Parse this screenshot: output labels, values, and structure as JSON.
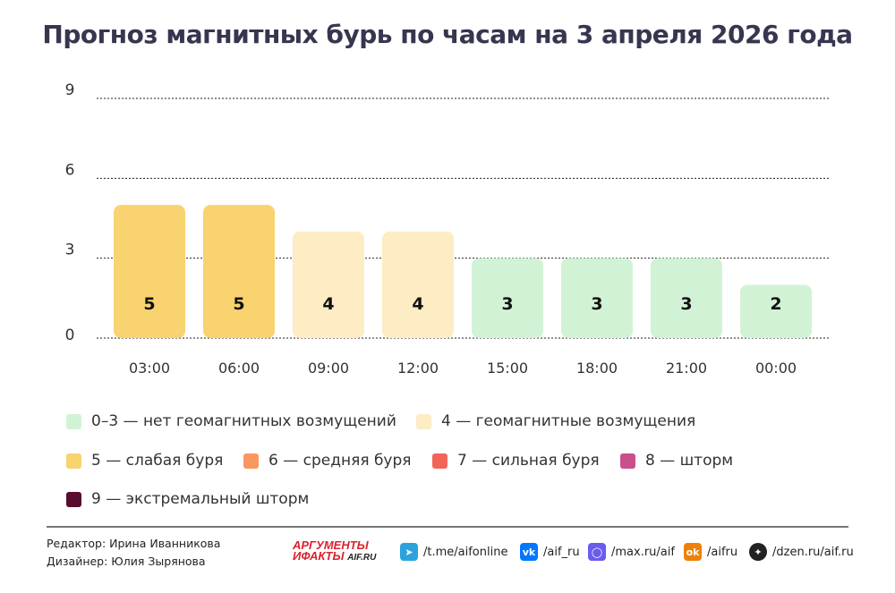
{
  "chart_data": {
    "type": "bar",
    "title": "Прогноз магнитных бурь по часам на 3 апреля 2026 года",
    "categories": [
      "03:00",
      "06:00",
      "09:00",
      "12:00",
      "15:00",
      "18:00",
      "21:00",
      "00:00"
    ],
    "values": [
      5,
      5,
      4,
      4,
      3,
      3,
      3,
      2
    ],
    "ylim": [
      0,
      9
    ],
    "yticks": [
      0,
      3,
      6,
      9
    ],
    "grid": true,
    "legend_placement": "bottom",
    "xlabel": "",
    "ylabel": ""
  },
  "legend": [
    {
      "label": "0–3 — нет геомагнитных возмущений",
      "color": "#d2f2d6"
    },
    {
      "label": "4 — геомагнитные возмущения",
      "color": "#fdecc4"
    },
    {
      "label": "5 — слабая буря",
      "color": "#f9d36f"
    },
    {
      "label": "6 — средняя буря",
      "color": "#f9975f"
    },
    {
      "label": "7 — сильная буря",
      "color": "#f2645a"
    },
    {
      "label": "8 — шторм",
      "color": "#c9508a"
    },
    {
      "label": "9 — экстремальный шторм",
      "color": "#5a0c2e"
    }
  ],
  "footer": {
    "editor": "Редактор: Ирина Иванникова",
    "designer": "Дизайнер: Юлия Зырянова",
    "logo": "АРГУМЕНТЫ И ФАКТЫ AIF.RU",
    "logo_line1": "АРГУМЕНТЫ",
    "logo_line2": "ИФАКТЫ",
    "logo_line3": "AIF.RU",
    "social": [
      {
        "icon": "telegram-icon",
        "label": "/t.me/aifonline",
        "color": "#2aa3dc"
      },
      {
        "icon": "vk-icon",
        "label": "/aif_ru",
        "color": "#0077ff"
      },
      {
        "icon": "max-icon",
        "label": "/max.ru/aif",
        "color": "#6b5cf0"
      },
      {
        "icon": "odnoklassniki-icon",
        "label": "/aifru",
        "color": "#ee8208"
      },
      {
        "icon": "dzen-icon",
        "label": "/dzen.ru/aif.ru",
        "color": "#222222"
      }
    ]
  }
}
